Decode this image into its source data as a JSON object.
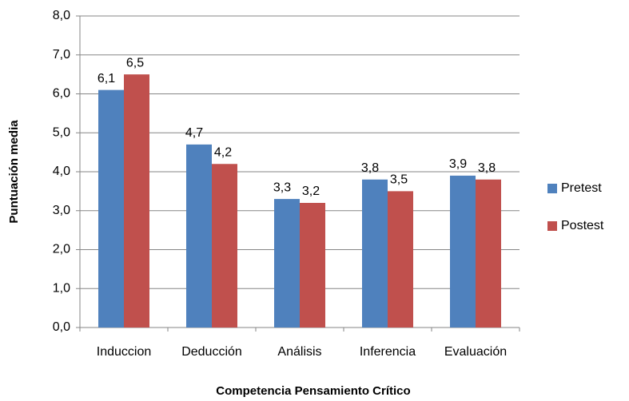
{
  "chart_data": {
    "type": "bar",
    "x_label": "Competencia Pensamiento Crítico",
    "y_label": "Puntuación media",
    "categories": [
      "Induccion",
      "Deducción",
      "Análisis",
      "Inferencia",
      "Evaluación"
    ],
    "series": [
      {
        "name": "Pretest",
        "color": "#4f81bd",
        "values": [
          6.1,
          4.7,
          3.3,
          3.8,
          3.9
        ],
        "value_labels": [
          "6,1",
          "4,7",
          "3,3",
          "3,8",
          "3,9"
        ]
      },
      {
        "name": "Postest",
        "color": "#c0504d",
        "values": [
          6.5,
          4.2,
          3.2,
          3.5,
          3.8
        ],
        "value_labels": [
          "6,5",
          "4,2",
          "3,2",
          "3,5",
          "3,8"
        ]
      }
    ],
    "ylim": [
      0,
      8
    ],
    "yticks": [
      {
        "value": 0,
        "label": "0,0"
      },
      {
        "value": 1,
        "label": "1,0"
      },
      {
        "value": 2,
        "label": "2,0"
      },
      {
        "value": 3,
        "label": "3,0"
      },
      {
        "value": 4,
        "label": "4,0"
      },
      {
        "value": 5,
        "label": "5,0"
      },
      {
        "value": 6,
        "label": "6,0"
      },
      {
        "value": 7,
        "label": "7,0"
      },
      {
        "value": 8,
        "label": "8,0"
      }
    ],
    "grid": true,
    "legend": "right"
  }
}
